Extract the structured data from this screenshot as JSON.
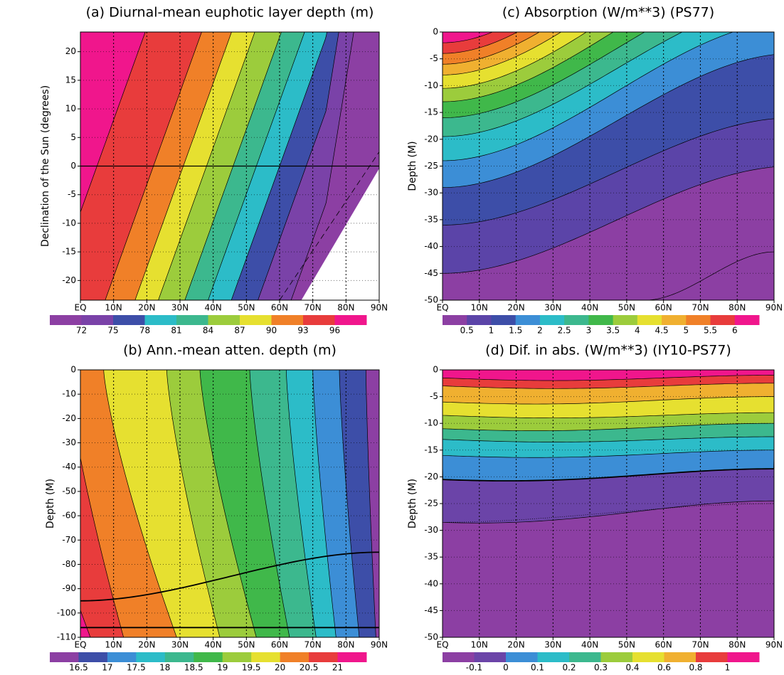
{
  "chart_data": [
    {
      "type": "contour",
      "title": "(a) Diurnal-mean euphotic layer depth (m)",
      "ylabel": "Declination of the Sun (degrees)",
      "xlim": [
        0,
        90
      ],
      "xticks": [
        {
          "value": 0,
          "label": "EQ"
        },
        {
          "value": 10,
          "label": "10N"
        },
        {
          "value": 20,
          "label": "20N"
        },
        {
          "value": 30,
          "label": "30N"
        },
        {
          "value": 40,
          "label": "40N"
        },
        {
          "value": 50,
          "label": "50N"
        },
        {
          "value": 60,
          "label": "60N"
        },
        {
          "value": 70,
          "label": "70N"
        },
        {
          "value": 80,
          "label": "80N"
        },
        {
          "value": 90,
          "label": "90N"
        }
      ],
      "ylim": [
        -23.44,
        23.44
      ],
      "yticks": [
        -20,
        -15,
        -10,
        -5,
        0,
        5,
        10,
        15,
        20
      ],
      "grid": true,
      "levels": [
        72,
        75,
        78,
        81,
        84,
        87,
        90,
        93,
        96
      ],
      "colors": [
        "#8c3fa3",
        "#7a42a8",
        "#3d4ea8",
        "#2cbcc8",
        "#3cb88e",
        "#9ccc3c",
        "#e6e030",
        "#f08028",
        "#e83c3c",
        "#f0168c"
      ]
    },
    {
      "type": "contour",
      "title": "(b) Ann.-mean atten. depth (m)",
      "ylabel": "Depth (M)",
      "xlim": [
        0,
        90
      ],
      "xticks": [
        {
          "value": 0,
          "label": "EQ"
        },
        {
          "value": 10,
          "label": "10N"
        },
        {
          "value": 20,
          "label": "20N"
        },
        {
          "value": 30,
          "label": "30N"
        },
        {
          "value": 40,
          "label": "40N"
        },
        {
          "value": 50,
          "label": "50N"
        },
        {
          "value": 60,
          "label": "60N"
        },
        {
          "value": 70,
          "label": "70N"
        },
        {
          "value": 80,
          "label": "80N"
        },
        {
          "value": 90,
          "label": "90N"
        }
      ],
      "ylim": [
        -110,
        0
      ],
      "yticks": [
        -110,
        -100,
        -90,
        -80,
        -70,
        -60,
        -50,
        -40,
        -30,
        -20,
        -10,
        0
      ],
      "grid": true,
      "levels": [
        16.5,
        17,
        17.5,
        18,
        18.5,
        19,
        19.5,
        20,
        20.5,
        21
      ],
      "colors": [
        "#8c3fa3",
        "#3d4ea8",
        "#3c8ed6",
        "#2cbcc8",
        "#3cb88e",
        "#40b84a",
        "#9ccc3c",
        "#e6e030",
        "#f08028",
        "#e83c3c",
        "#f0168c"
      ]
    },
    {
      "type": "contour",
      "title": "(c) Absorption (W/m**3) (PS77)",
      "ylabel": "Depth (M)",
      "xlim": [
        0,
        90
      ],
      "xticks": [
        {
          "value": 0,
          "label": "EQ"
        },
        {
          "value": 10,
          "label": "10N"
        },
        {
          "value": 20,
          "label": "20N"
        },
        {
          "value": 30,
          "label": "30N"
        },
        {
          "value": 40,
          "label": "40N"
        },
        {
          "value": 50,
          "label": "50N"
        },
        {
          "value": 60,
          "label": "60N"
        },
        {
          "value": 70,
          "label": "70N"
        },
        {
          "value": 80,
          "label": "80N"
        },
        {
          "value": 90,
          "label": "90N"
        }
      ],
      "ylim": [
        -50,
        0
      ],
      "yticks": [
        -50,
        -45,
        -40,
        -35,
        -30,
        -25,
        -20,
        -15,
        -10,
        -5,
        0
      ],
      "grid": true,
      "levels": [
        0.5,
        1,
        1.5,
        2,
        2.5,
        3,
        3.5,
        4,
        4.5,
        5,
        5.5,
        6
      ],
      "colors": [
        "#8c3fa3",
        "#5b44a8",
        "#3d4ea8",
        "#3c8ed6",
        "#2cbcc8",
        "#3cb88e",
        "#40b84a",
        "#9ccc3c",
        "#e6e030",
        "#f0b030",
        "#f08028",
        "#e83c3c",
        "#f0168c"
      ]
    },
    {
      "type": "contour",
      "title": "(d) Dif. in abs. (W/m**3) (IY10-PS77)",
      "ylabel": "Depth (M)",
      "xlim": [
        0,
        90
      ],
      "xticks": [
        {
          "value": 0,
          "label": "EQ"
        },
        {
          "value": 10,
          "label": "10N"
        },
        {
          "value": 20,
          "label": "20N"
        },
        {
          "value": 30,
          "label": "30N"
        },
        {
          "value": 40,
          "label": "40N"
        },
        {
          "value": 50,
          "label": "50N"
        },
        {
          "value": 60,
          "label": "60N"
        },
        {
          "value": 70,
          "label": "70N"
        },
        {
          "value": 80,
          "label": "80N"
        },
        {
          "value": 90,
          "label": "90N"
        }
      ],
      "ylim": [
        -50,
        0
      ],
      "yticks": [
        -50,
        -45,
        -40,
        -35,
        -30,
        -25,
        -20,
        -15,
        -10,
        -5,
        0
      ],
      "grid": true,
      "levels": [
        -0.1,
        0,
        0.1,
        0.2,
        0.3,
        0.4,
        0.6,
        0.8,
        1
      ],
      "colors": [
        "#8c3fa3",
        "#6b44a8",
        "#3c8ed6",
        "#2cbcc8",
        "#3cb88e",
        "#9ccc3c",
        "#e6e030",
        "#f0b030",
        "#e83c3c",
        "#f0168c"
      ]
    }
  ]
}
